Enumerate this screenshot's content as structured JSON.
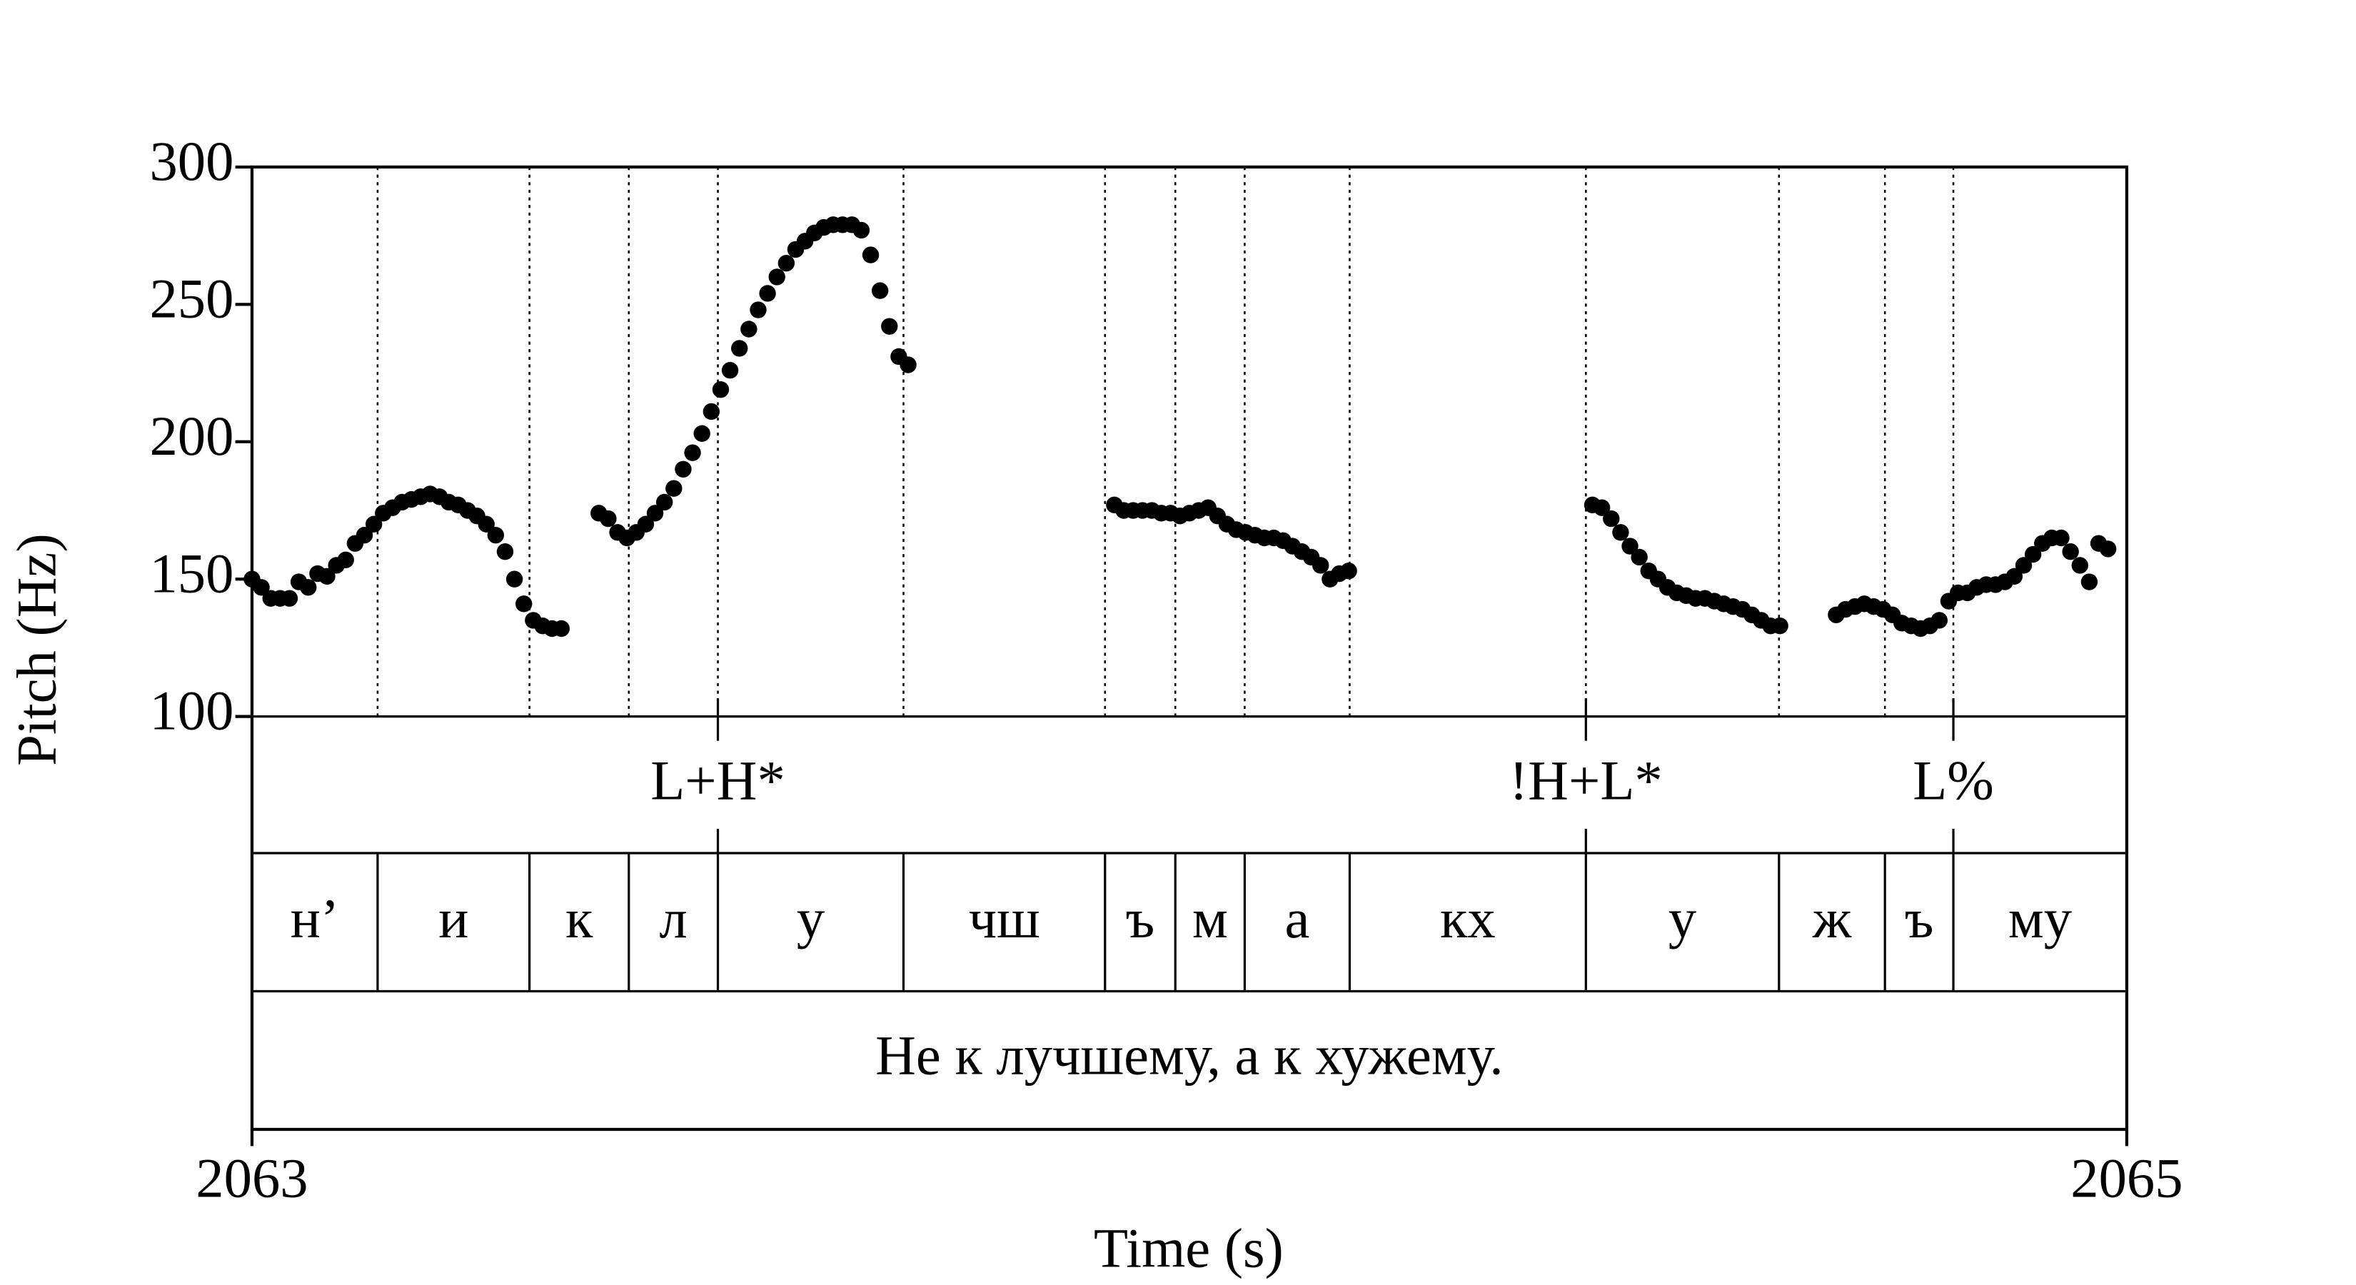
{
  "chart_data": {
    "type": "scatter",
    "xlabel": "Time (s)",
    "ylabel": "Pitch (Hz)",
    "xlim": [
      2063,
      2065
    ],
    "xticks": [
      2063,
      2065
    ],
    "ylim": [
      100,
      300
    ],
    "yticks": [
      100,
      150,
      200,
      250,
      300
    ],
    "color": "#000000",
    "series": [
      {
        "name": "Pitch",
        "x": [
          2063.0,
          2063.01,
          2063.02,
          2063.03,
          2063.04,
          2063.05,
          2063.06,
          2063.07,
          2063.08,
          2063.09,
          2063.1,
          2063.11,
          2063.12,
          2063.13,
          2063.14,
          2063.15,
          2063.16,
          2063.17,
          2063.18,
          2063.19,
          2063.2,
          2063.21,
          2063.22,
          2063.23,
          2063.24,
          2063.25,
          2063.26,
          2063.27,
          2063.28,
          2063.29,
          2063.3,
          2063.31,
          2063.32,
          2063.33,
          2063.35,
          2063.37,
          2063.38,
          2063.39,
          2063.4,
          2063.41,
          2063.42,
          2063.43,
          2063.44,
          2063.45,
          2063.46,
          2063.47,
          2063.48,
          2063.49,
          2063.5,
          2063.51,
          2063.52,
          2063.53,
          2063.54,
          2063.55,
          2063.56,
          2063.57,
          2063.58,
          2063.59,
          2063.6,
          2063.61,
          2063.62,
          2063.63,
          2063.64,
          2063.65,
          2063.66,
          2063.67,
          2063.68,
          2063.69,
          2063.7,
          2063.8,
          2063.92,
          2063.93,
          2063.94,
          2063.95,
          2063.96,
          2063.97,
          2063.98,
          2063.99,
          2064.0,
          2064.01,
          2064.02,
          2064.03,
          2064.04,
          2064.05,
          2064.06,
          2064.07,
          2064.08,
          2064.09,
          2064.1,
          2064.11,
          2064.12,
          2064.13,
          2064.14,
          2064.15,
          2064.16,
          2064.17,
          2064.3,
          2064.43,
          2064.44,
          2064.45,
          2064.46,
          2064.47,
          2064.48,
          2064.49,
          2064.5,
          2064.51,
          2064.52,
          2064.53,
          2064.54,
          2064.55,
          2064.56,
          2064.57,
          2064.58,
          2064.59,
          2064.6,
          2064.61,
          2064.62,
          2064.63,
          2064.66,
          2064.69,
          2064.7,
          2064.71,
          2064.72,
          2064.73,
          2064.74,
          2064.75,
          2064.76,
          2064.77,
          2064.78,
          2064.79,
          2064.8,
          2064.81,
          2064.82,
          2064.83,
          2064.84,
          2064.85,
          2064.86,
          2064.87,
          2064.88,
          2064.89,
          2064.9,
          2064.91,
          2064.92,
          2064.93,
          2064.94,
          2064.95,
          2064.96,
          2064.97,
          2064.98
        ],
        "values": [
          150,
          147,
          143,
          143,
          143,
          149,
          147,
          152,
          151,
          155,
          157,
          163,
          166,
          170,
          174,
          176,
          178,
          179,
          180,
          181,
          180,
          178,
          177,
          175,
          173,
          170,
          166,
          160,
          150,
          141,
          135,
          133,
          132,
          132,
          null,
          174,
          172,
          167,
          165,
          167,
          170,
          174,
          178,
          183,
          190,
          196,
          203,
          211,
          219,
          226,
          234,
          241,
          248,
          254,
          260,
          265,
          270,
          273,
          276,
          278,
          279,
          279,
          279,
          277,
          268,
          255,
          242,
          231,
          228,
          null,
          177,
          175,
          175,
          175,
          175,
          174,
          174,
          173,
          174,
          175,
          176,
          173,
          170,
          168,
          167,
          166,
          165,
          165,
          164,
          162,
          160,
          158,
          155,
          150,
          152,
          153,
          null,
          177,
          176,
          172,
          167,
          162,
          158,
          153,
          150,
          147,
          145,
          144,
          143,
          143,
          142,
          141,
          140,
          139,
          137,
          135,
          133,
          133,
          null,
          137,
          139,
          140,
          141,
          140,
          139,
          137,
          134,
          133,
          132,
          133,
          135,
          142,
          145,
          145,
          147,
          148,
          148,
          149,
          151,
          155,
          159,
          163,
          165,
          165,
          160,
          155,
          149,
          163,
          161
        ]
      }
    ],
    "tone_tier": {
      "times": [
        2063.497,
        2064.423,
        2064.815
      ],
      "labels": [
        "L+H*",
        "!H+L*",
        "L%"
      ]
    },
    "segment_tier": {
      "boundaries": [
        2063.134,
        2063.296,
        2063.402,
        2063.497,
        2063.695,
        2063.91,
        2063.985,
        2064.059,
        2064.171,
        2064.423,
        2064.629,
        2064.742,
        2064.815
      ],
      "labels": [
        "н’",
        "и",
        "к",
        "л",
        "у",
        "чш",
        "ъ",
        "м",
        "а",
        "кх",
        "у",
        "ж",
        "ъ",
        "му"
      ]
    },
    "word_tier": {
      "labels": [
        "Не к лучшему, а к хужему."
      ]
    }
  }
}
